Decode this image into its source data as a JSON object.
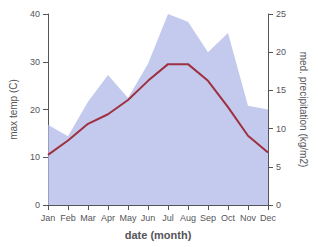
{
  "chart_data": {
    "type": "line",
    "x_label": "date (month)",
    "y_label": "max temp (C)",
    "y2_label": "med. precipitation (kg/m2)",
    "categories": [
      "Jan",
      "Feb",
      "Mar",
      "Apr",
      "May",
      "Jun",
      "Jul",
      "Aug",
      "Sep",
      "Oct",
      "Nov",
      "Dec"
    ],
    "series": [
      {
        "type": "area",
        "axis": "y2",
        "color": "#b0b8e8",
        "values": [
          10.5,
          9.0,
          13.5,
          17.0,
          14.0,
          18.5,
          25.0,
          24.0,
          20.0,
          22.5,
          13.0,
          12.5
        ]
      },
      {
        "type": "line",
        "color": "#9e3040",
        "values": [
          10.5,
          13.5,
          17.0,
          19.0,
          22.0,
          26.0,
          29.5,
          29.5,
          26.0,
          20.5,
          14.5,
          11.0
        ]
      }
    ],
    "ylim": [
      0,
      40
    ],
    "yticks": [
      0,
      10,
      20,
      30,
      40
    ],
    "y2lim": [
      0,
      25
    ],
    "y2ticks": [
      0,
      5,
      10,
      15,
      20,
      25
    ],
    "grid": false
  }
}
